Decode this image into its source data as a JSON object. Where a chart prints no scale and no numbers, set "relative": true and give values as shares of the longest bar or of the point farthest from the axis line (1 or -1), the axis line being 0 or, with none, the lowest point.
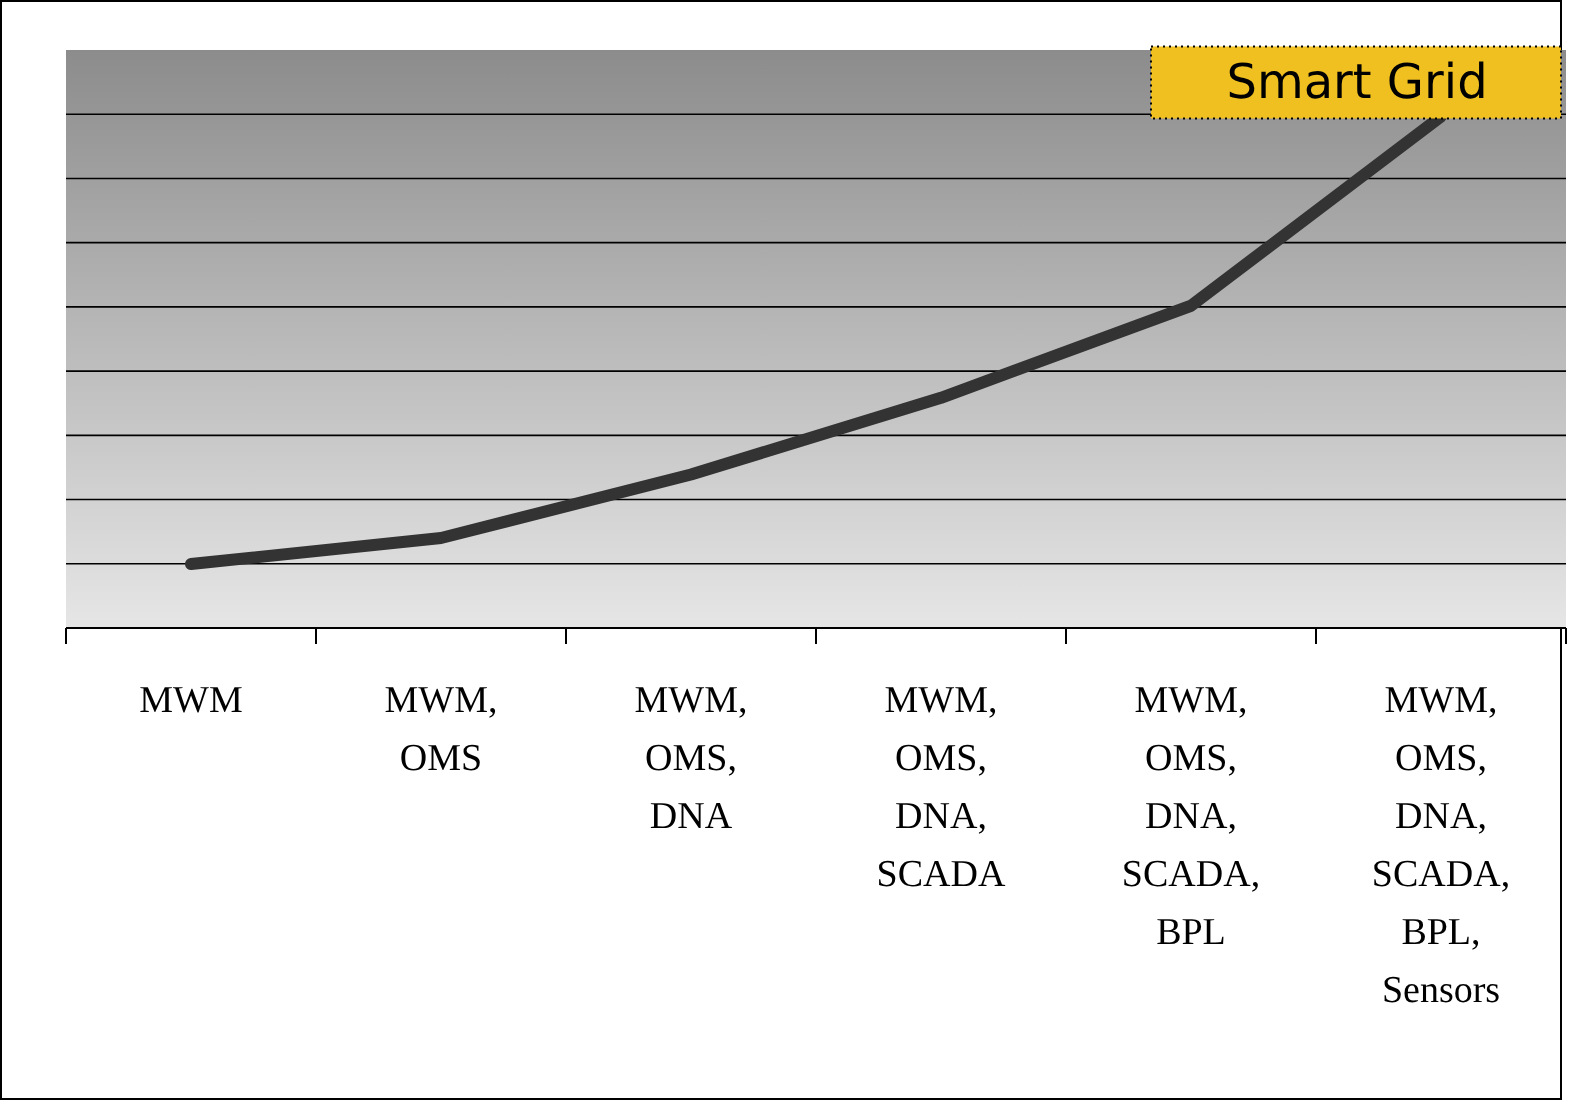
{
  "chart_data": {
    "type": "line",
    "relative": true,
    "grid": "y",
    "categories": [
      "MWM",
      "MWM, OMS",
      "MWM, OMS, DNA",
      "MWM, OMS, DNA, SCADA",
      "MWM, OMS, DNA, SCADA, BPL",
      "MWM, OMS, DNA, SCADA, BPL, Sensors"
    ],
    "series": [
      {
        "color": "#333333",
        "values": [
          0.125,
          0.176,
          0.3,
          0.45,
          0.63,
          1
        ]
      }
    ],
    "marker": "none",
    "line_style": "solid",
    "annotations": [
      {
        "text": "Smart Grid",
        "x": "MWM, OMS, DNA, SCADA, BPL, Sensors",
        "y": 1
      }
    ]
  }
}
